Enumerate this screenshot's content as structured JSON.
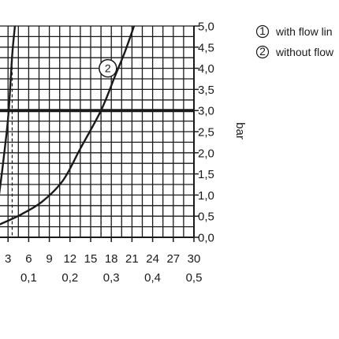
{
  "chart_data": {
    "type": "line",
    "ylabel": "bar",
    "xlim": [
      0,
      30
    ],
    "ylim": [
      0,
      5
    ],
    "grid": true,
    "x_ticks_primary": [
      "3",
      "6",
      "9",
      "12",
      "15",
      "18",
      "21",
      "24",
      "27",
      "30"
    ],
    "x_ticks_secondary": [
      "0,1",
      "0,2",
      "0,3",
      "0,4",
      "0,5"
    ],
    "y_ticks": [
      "0,0",
      "0,5",
      "1,0",
      "1,5",
      "2,0",
      "2,5",
      "3,0",
      "3,5",
      "4,0",
      "4,5",
      "5,0"
    ],
    "reference_line": {
      "y": 3.0
    },
    "series": [
      {
        "marker": "1",
        "color": "#1a1a1a",
        "points": [
          [
            0.3,
            0.0
          ],
          [
            1.5,
            0.8
          ],
          [
            2.6,
            2.2
          ],
          [
            3.1,
            3.0
          ],
          [
            3.6,
            4.3
          ],
          [
            4.0,
            5.0
          ]
        ],
        "drop_line_x": 3.6
      },
      {
        "marker": "2",
        "color": "#1a1a1a",
        "points": [
          [
            0.0,
            0.18
          ],
          [
            2.0,
            0.32
          ],
          [
            5.0,
            0.55
          ],
          [
            8.0,
            0.85
          ],
          [
            11.0,
            1.35
          ],
          [
            13.5,
            2.1
          ],
          [
            16.5,
            3.0
          ],
          [
            18.5,
            3.8
          ],
          [
            20.0,
            4.4
          ],
          [
            21.3,
            5.0
          ]
        ],
        "drop_line_x": 16.5
      }
    ],
    "legend": [
      {
        "marker": "1",
        "label": "with flow lin"
      },
      {
        "marker": "2",
        "label": "without flow"
      }
    ],
    "legend_position": "top-right"
  }
}
